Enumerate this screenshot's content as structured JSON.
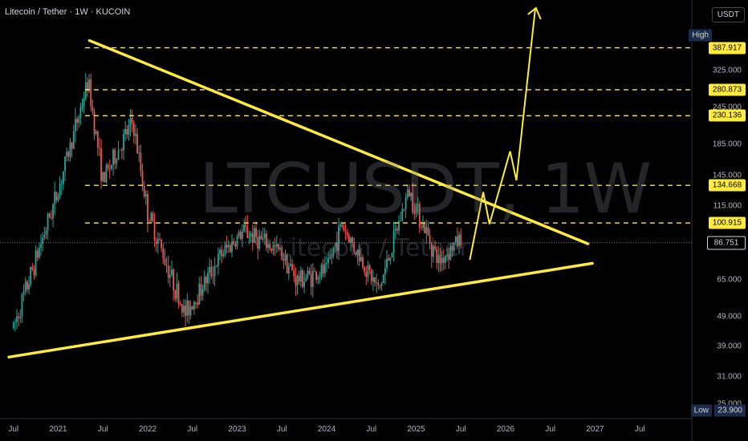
{
  "header": {
    "symbol_name": "Litecoin / Tether",
    "interval": "1W",
    "exchange": "KUCOIN",
    "separator": " · "
  },
  "watermark": {
    "ticker": "LTCUSDT, 1W",
    "name": "Litecoin / Tether"
  },
  "currency_badge": "USDT",
  "colors": {
    "up": "#26a69a",
    "down": "#ef5350",
    "annotation": "#ffeb3b",
    "background": "#000000"
  },
  "chart_data": {
    "type": "candlestick",
    "title": "Litecoin / Tether · 1W · KUCOIN",
    "y_scale": "log",
    "ylim": [
      23,
      520
    ],
    "y_ticks": [
      "325.000",
      "245.000",
      "185.000",
      "145.000",
      "115.000",
      "65.000",
      "49.000",
      "39.000",
      "31.000",
      "25.000"
    ],
    "x_ticks": [
      "Jul",
      "2021",
      "Jul",
      "2022",
      "Jul",
      "2023",
      "Jul",
      "2024",
      "Jul",
      "2025",
      "Jul",
      "2026",
      "Jul",
      "2027",
      "Jul"
    ],
    "price_levels": [
      {
        "label": "387.917",
        "value": 387.917,
        "style": "yellow-dashed"
      },
      {
        "label": "280.873",
        "value": 280.873,
        "style": "yellow-dashed"
      },
      {
        "label": "230.136",
        "value": 230.136,
        "style": "yellow-dashed"
      },
      {
        "label": "134.668",
        "value": 134.668,
        "style": "yellow-dashed"
      },
      {
        "label": "100.915",
        "value": 100.915,
        "style": "yellow-dashed"
      }
    ],
    "current_price": {
      "label": "86.751",
      "value": 86.751
    },
    "high": {
      "tag": "High",
      "value": "387.917"
    },
    "low": {
      "tag": "Low",
      "value": "23.900"
    },
    "approx_weekly_closes": [
      {
        "date": "2020-07",
        "close": 45
      },
      {
        "date": "2021-01",
        "close": 130
      },
      {
        "date": "2021-05",
        "close": 300
      },
      {
        "date": "2021-07",
        "close": 140
      },
      {
        "date": "2021-11",
        "close": 220
      },
      {
        "date": "2022-01",
        "close": 110
      },
      {
        "date": "2022-06",
        "close": 50
      },
      {
        "date": "2022-11",
        "close": 80
      },
      {
        "date": "2023-02",
        "close": 95
      },
      {
        "date": "2023-07",
        "close": 80
      },
      {
        "date": "2023-09",
        "close": 65
      },
      {
        "date": "2024-01",
        "close": 70
      },
      {
        "date": "2024-03",
        "close": 100
      },
      {
        "date": "2024-08",
        "close": 60
      },
      {
        "date": "2024-12",
        "close": 130
      },
      {
        "date": "2025-04",
        "close": 75
      },
      {
        "date": "2025-07",
        "close": 90
      }
    ],
    "annotations": [
      "symmetrical triangle upper trendline",
      "symmetrical triangle lower trendline",
      "projected breakout path"
    ]
  }
}
